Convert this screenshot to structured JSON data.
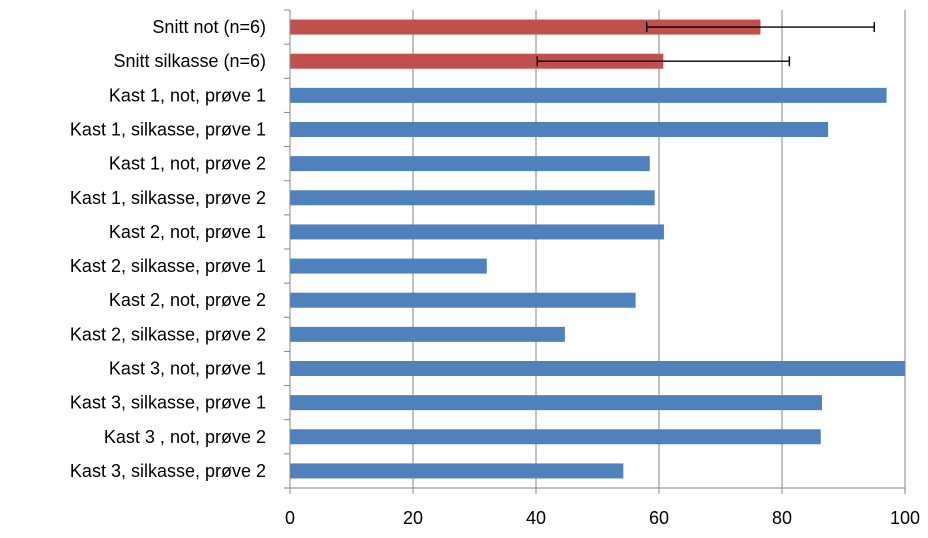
{
  "chart_data": {
    "type": "bar",
    "orientation": "horizontal",
    "title": "",
    "xlabel": "",
    "ylabel": "",
    "xlim": [
      0,
      100
    ],
    "x_ticks": [
      0,
      20,
      40,
      60,
      80,
      100
    ],
    "grid": true,
    "legend": "none",
    "categories": [
      "Snitt not (n=6)",
      "Snitt silkasse (n=6)",
      "Kast 1, not, prøve 1",
      "Kast 1, silkasse, prøve 1",
      "Kast 1, not, prøve 2",
      "Kast 1, silkasse, prøve 2",
      "Kast 2, not, prøve 1",
      "Kast 2, silkasse, prøve 1",
      "Kast 2, not, prøve 2",
      "Kast 2, silkasse, prøve 2",
      "Kast 3, not, prøve 1",
      "Kast 3, silkasse, prøve 1",
      "Kast 3 , not, prøve 2",
      "Kast 3, silkasse, prøve 2"
    ],
    "values": [
      76.5,
      60.7,
      97,
      87.5,
      58.5,
      59.3,
      60.8,
      32,
      56.2,
      44.7,
      100,
      86.5,
      86.3,
      54.2
    ],
    "error_bars": [
      {
        "index": 0,
        "low": 58,
        "high": 95
      },
      {
        "index": 1,
        "low": 40.2,
        "high": 81.2
      }
    ],
    "colors": {
      "average_bars": "#C0504D",
      "sample_bars": "#4F81BD",
      "gridline": "#868686",
      "axis": "#868686",
      "error_bar": "#000000"
    },
    "average_count": 2
  }
}
